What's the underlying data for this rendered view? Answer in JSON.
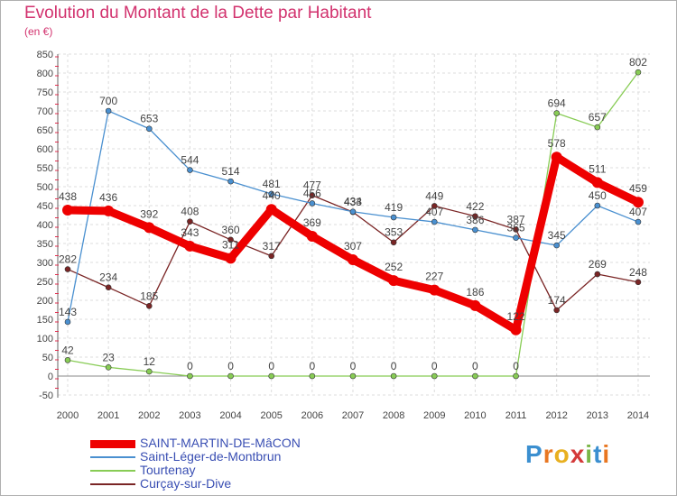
{
  "title": "Evolution du Montant de la Dette par Habitant",
  "unit_label": "(en €)",
  "brand": "Proxiti",
  "chart_data": {
    "type": "line",
    "x": [
      "2000",
      "2001",
      "2002",
      "2003",
      "2004",
      "2005",
      "2006",
      "2007",
      "2008",
      "2009",
      "2010",
      "2011",
      "2012",
      "2013",
      "2014"
    ],
    "ylim": [
      -50,
      850
    ],
    "yticks": [
      -50,
      0,
      50,
      100,
      150,
      200,
      250,
      300,
      350,
      400,
      450,
      500,
      550,
      600,
      650,
      700,
      750,
      800,
      850
    ],
    "grid": true,
    "legend_position": "bottom-left",
    "series": [
      {
        "name": "SAINT-MARTIN-DE-MâCON",
        "color": "#ee0000",
        "values": [
          438,
          436,
          392,
          343,
          311,
          440,
          369,
          307,
          252,
          227,
          186,
          122,
          578,
          511,
          459
        ]
      },
      {
        "name": "Saint-Léger-de-Montbrun",
        "color": "#4a90d0",
        "values": [
          143,
          700,
          653,
          544,
          514,
          481,
          456,
          434,
          419,
          407,
          386,
          365,
          345,
          450,
          407
        ]
      },
      {
        "name": "Tourtenay",
        "color": "#88cc55",
        "values": [
          42,
          23,
          12,
          0,
          0,
          0,
          0,
          0,
          0,
          0,
          0,
          0,
          694,
          657,
          802
        ]
      },
      {
        "name": "Curçay-sur-Dive",
        "color": "#7a2525",
        "values": [
          282,
          234,
          185,
          408,
          360,
          317,
          477,
          433,
          353,
          449,
          422,
          387,
          174,
          269,
          248
        ]
      }
    ]
  }
}
